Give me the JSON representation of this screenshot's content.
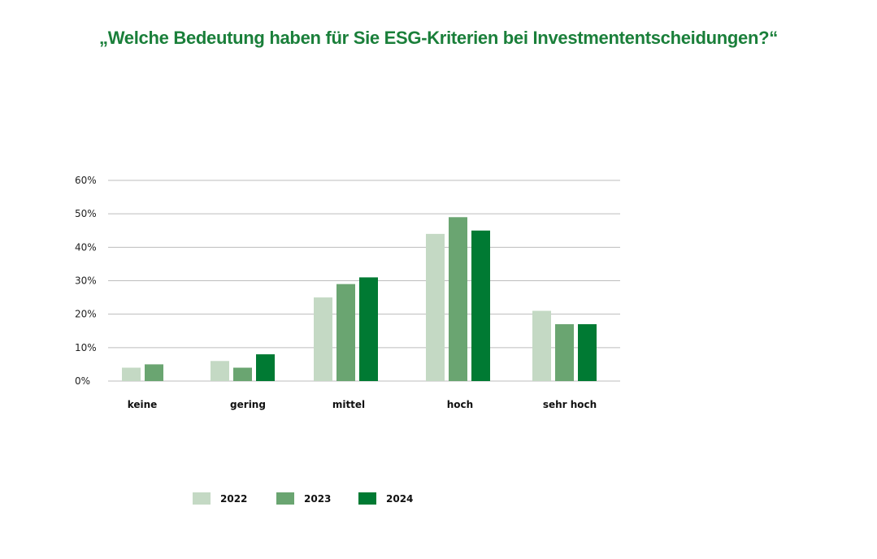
{
  "chart_data": {
    "type": "bar",
    "title": "„Welche Bedeutung haben für Sie ESG-Kriterien bei Investmententscheidungen?“",
    "categories": [
      "keine",
      "gering",
      "mittel",
      "hoch",
      "sehr hoch"
    ],
    "series": [
      {
        "name": "2022",
        "color": "#c4d9c4",
        "values": [
          4,
          6,
          25,
          44,
          21
        ]
      },
      {
        "name": "2023",
        "color": "#6aa571",
        "values": [
          5,
          4,
          29,
          49,
          17
        ]
      },
      {
        "name": "2024",
        "color": "#007a33",
        "values": [
          null,
          8,
          31,
          45,
          17
        ]
      }
    ],
    "yticks": [
      "0%",
      "10%",
      "20%",
      "30%",
      "40%",
      "50%",
      "60%"
    ],
    "ylim": [
      0,
      60
    ],
    "grid": true,
    "legend": "bottom"
  }
}
